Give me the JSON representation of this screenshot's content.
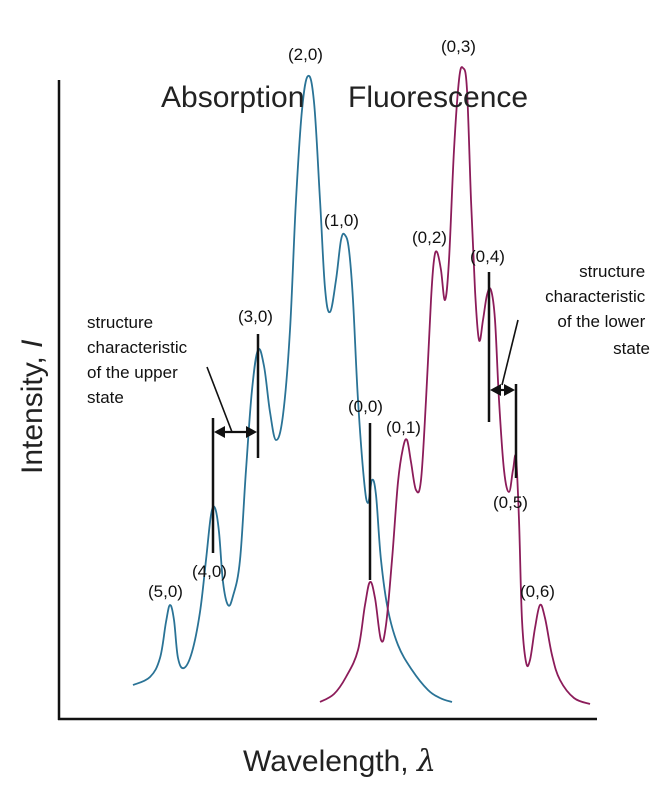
{
  "title": {
    "absorption": "Absorption",
    "fluorescence": "Fluorescence"
  },
  "axes": {
    "x_label_text": "Wavelength, ",
    "x_label_symbol": "λ",
    "y_label_text": "Intensity, ",
    "y_label_symbol": "I"
  },
  "peaks": {
    "p50": "(5,0)",
    "p40": "(4,0)",
    "p30": "(3,0)",
    "p20": "(2,0)",
    "p10": "(1,0)",
    "p00": "(0,0)",
    "p01": "(0,1)",
    "p02": "(0,2)",
    "p03": "(0,3)",
    "p04": "(0,4)",
    "p05": "(0,5)",
    "p06": "(0,6)"
  },
  "annotations": {
    "upper": [
      "structure",
      "characteristic",
      "of the upper",
      "state"
    ],
    "lower": [
      "structure",
      "characteristic",
      "of the lower",
      "state"
    ]
  },
  "colors": {
    "absorption": "#2a7396",
    "fluorescence": "#8c1c5a",
    "axis": "#111111"
  }
}
